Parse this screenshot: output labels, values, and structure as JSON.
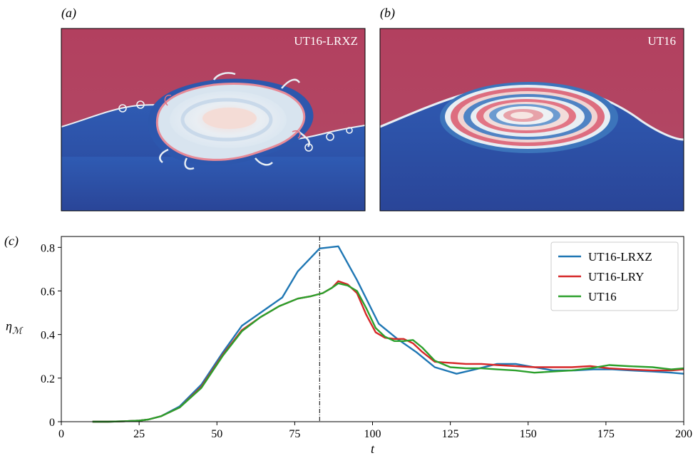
{
  "panels": {
    "a": {
      "letter": "(a)",
      "label": "UT16-LRXZ"
    },
    "b": {
      "letter": "(b)",
      "label": "UT16"
    },
    "c": {
      "letter": "(c)"
    }
  },
  "colors": {
    "upper_fluid": "#b2405f",
    "lower_fluid": "#2b4aa0",
    "light_band": "#e8eef3",
    "mid_blue": "#3a7bbf",
    "pink": "#e07a88"
  },
  "chart_data": {
    "type": "line",
    "xlabel": "t",
    "ylabel": "η",
    "ylabel_subscript": "ℳ",
    "xlim": [
      0,
      200
    ],
    "ylim": [
      0,
      0.85
    ],
    "xticks": [
      0,
      25,
      50,
      75,
      100,
      125,
      150,
      175,
      200
    ],
    "yticks": [
      0,
      0.2,
      0.4,
      0.6,
      0.8
    ],
    "ytick_labels": [
      "0",
      "0.2",
      "0.4",
      "0.6",
      "0.8"
    ],
    "grid": false,
    "legend_position": "top-right",
    "vline_x": 83,
    "series": [
      {
        "name": "UT16-LRXZ",
        "color": "#1f77b4",
        "x": [
          10,
          15,
          20,
          25,
          28,
          32,
          38,
          45,
          52,
          58,
          65,
          71,
          76,
          83,
          89,
          95,
          102,
          108,
          114,
          120,
          127,
          133,
          140,
          146,
          152,
          158,
          165,
          171,
          177,
          183,
          190,
          196,
          200
        ],
        "y": [
          0.0,
          0.0,
          0.002,
          0.005,
          0.01,
          0.025,
          0.07,
          0.17,
          0.32,
          0.44,
          0.51,
          0.57,
          0.69,
          0.795,
          0.805,
          0.65,
          0.45,
          0.38,
          0.32,
          0.25,
          0.22,
          0.24,
          0.265,
          0.265,
          0.25,
          0.235,
          0.235,
          0.24,
          0.24,
          0.235,
          0.23,
          0.225,
          0.22
        ]
      },
      {
        "name": "UT16-LRY",
        "color": "#d62728",
        "x": [
          10,
          15,
          20,
          25,
          28,
          32,
          38,
          45,
          52,
          58,
          64,
          70,
          76,
          80,
          84,
          87,
          89,
          92,
          95,
          98,
          101,
          104,
          107,
          110,
          113,
          116,
          120,
          125,
          130,
          135,
          140,
          146,
          152,
          158,
          164,
          170,
          176,
          182,
          190,
          196,
          200
        ],
        "y": [
          0.0,
          0.0,
          0.002,
          0.005,
          0.01,
          0.025,
          0.065,
          0.16,
          0.31,
          0.42,
          0.48,
          0.53,
          0.565,
          0.575,
          0.59,
          0.615,
          0.645,
          0.63,
          0.59,
          0.49,
          0.41,
          0.385,
          0.38,
          0.38,
          0.36,
          0.32,
          0.275,
          0.27,
          0.265,
          0.265,
          0.26,
          0.255,
          0.25,
          0.25,
          0.25,
          0.255,
          0.245,
          0.24,
          0.235,
          0.235,
          0.24
        ]
      },
      {
        "name": "UT16",
        "color": "#2ca02c",
        "x": [
          10,
          15,
          20,
          25,
          28,
          32,
          38,
          45,
          52,
          58,
          64,
          70,
          76,
          80,
          84,
          87,
          89,
          92,
          95,
          98,
          101,
          104,
          107,
          110,
          113,
          116,
          120,
          125,
          130,
          135,
          140,
          146,
          152,
          158,
          164,
          170,
          176,
          182,
          190,
          196,
          200
        ],
        "y": [
          0.0,
          0.0,
          0.002,
          0.005,
          0.01,
          0.025,
          0.065,
          0.155,
          0.305,
          0.415,
          0.48,
          0.53,
          0.565,
          0.575,
          0.59,
          0.615,
          0.635,
          0.625,
          0.6,
          0.52,
          0.43,
          0.39,
          0.37,
          0.37,
          0.375,
          0.34,
          0.28,
          0.25,
          0.245,
          0.245,
          0.24,
          0.235,
          0.225,
          0.23,
          0.235,
          0.245,
          0.26,
          0.255,
          0.25,
          0.24,
          0.245
        ]
      }
    ]
  }
}
